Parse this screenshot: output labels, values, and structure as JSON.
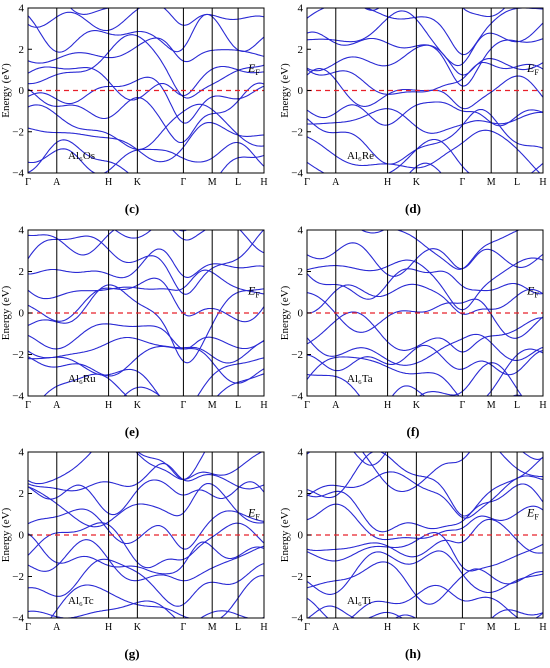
{
  "figure": {
    "captions": [
      "(c)",
      "(d)",
      "(e)",
      "(f)",
      "(g)",
      "(h)"
    ]
  },
  "chart_data": [
    {
      "type": "line",
      "panel": "(c)",
      "compound_label": "Al₆Os",
      "fermi_label": "E",
      "fermi_subscript": "F",
      "ylabel": "Energy (eV)",
      "ylim": [
        -4,
        4
      ],
      "yticks": [
        -4,
        -2,
        0,
        2,
        4
      ],
      "kpath_labels": [
        "Γ",
        "A",
        "H",
        "K",
        "Γ",
        "M",
        "L",
        "H"
      ],
      "kpath_positions": [
        0,
        0.5,
        1.4,
        1.9,
        2.7,
        3.2,
        3.65,
        4.1
      ],
      "fermi_level": 0,
      "line_color": "#2a2ad4",
      "fermi_color": "#e8202a",
      "grid": false
    },
    {
      "type": "line",
      "panel": "(d)",
      "compound_label": "Al₆Re",
      "fermi_label": "E",
      "fermi_subscript": "F",
      "ylabel": "Energy (eV)",
      "ylim": [
        -4,
        4
      ],
      "yticks": [
        -4,
        -2,
        0,
        2,
        4
      ],
      "kpath_labels": [
        "Γ",
        "A",
        "H",
        "K",
        "Γ",
        "M",
        "L",
        "H"
      ],
      "kpath_positions": [
        0,
        0.5,
        1.4,
        1.9,
        2.7,
        3.2,
        3.65,
        4.1
      ],
      "fermi_level": 0,
      "line_color": "#2a2ad4",
      "fermi_color": "#e8202a",
      "grid": false
    },
    {
      "type": "line",
      "panel": "(e)",
      "compound_label": "Al₆Ru",
      "fermi_label": "E",
      "fermi_subscript": "F",
      "ylabel": "Energy (eV)",
      "ylim": [
        -4,
        4
      ],
      "yticks": [
        -4,
        -2,
        0,
        2,
        4
      ],
      "kpath_labels": [
        "Γ",
        "A",
        "H",
        "K",
        "Γ",
        "M",
        "L",
        "H"
      ],
      "kpath_positions": [
        0,
        0.5,
        1.4,
        1.9,
        2.7,
        3.2,
        3.65,
        4.1
      ],
      "fermi_level": 0,
      "line_color": "#2a2ad4",
      "fermi_color": "#e8202a",
      "grid": false
    },
    {
      "type": "line",
      "panel": "(f)",
      "compound_label": "Al₆Ta",
      "fermi_label": "E",
      "fermi_subscript": "F",
      "ylabel": "Energy (eV)",
      "ylim": [
        -4,
        4
      ],
      "yticks": [
        -4,
        -2,
        0,
        2,
        4
      ],
      "kpath_labels": [
        "Γ",
        "A",
        "H",
        "K",
        "Γ",
        "M",
        "L",
        "H"
      ],
      "kpath_positions": [
        0,
        0.5,
        1.4,
        1.9,
        2.7,
        3.2,
        3.65,
        4.1
      ],
      "fermi_level": 0,
      "line_color": "#2a2ad4",
      "fermi_color": "#e8202a",
      "grid": false
    },
    {
      "type": "line",
      "panel": "(g)",
      "compound_label": "Al₆Tc",
      "fermi_label": "E",
      "fermi_subscript": "F",
      "ylabel": "Energy (eV)",
      "ylim": [
        -4,
        4
      ],
      "yticks": [
        -4,
        -2,
        0,
        2,
        4
      ],
      "kpath_labels": [
        "Γ",
        "A",
        "H",
        "K",
        "Γ",
        "M",
        "L",
        "H"
      ],
      "kpath_positions": [
        0,
        0.5,
        1.4,
        1.9,
        2.7,
        3.2,
        3.65,
        4.1
      ],
      "fermi_level": 0,
      "line_color": "#2a2ad4",
      "fermi_color": "#e8202a",
      "grid": false
    },
    {
      "type": "line",
      "panel": "(h)",
      "compound_label": "Al₆Ti",
      "fermi_label": "E",
      "fermi_subscript": "F",
      "ylabel": "Energy (eV)",
      "ylim": [
        -4,
        4
      ],
      "yticks": [
        -4,
        -2,
        0,
        2,
        4
      ],
      "kpath_labels": [
        "Γ",
        "A",
        "H",
        "K",
        "Γ",
        "M",
        "L",
        "H"
      ],
      "kpath_positions": [
        0,
        0.5,
        1.4,
        1.9,
        2.7,
        3.2,
        3.65,
        4.1
      ],
      "fermi_level": 0,
      "line_color": "#2a2ad4",
      "fermi_color": "#e8202a",
      "grid": false
    }
  ]
}
